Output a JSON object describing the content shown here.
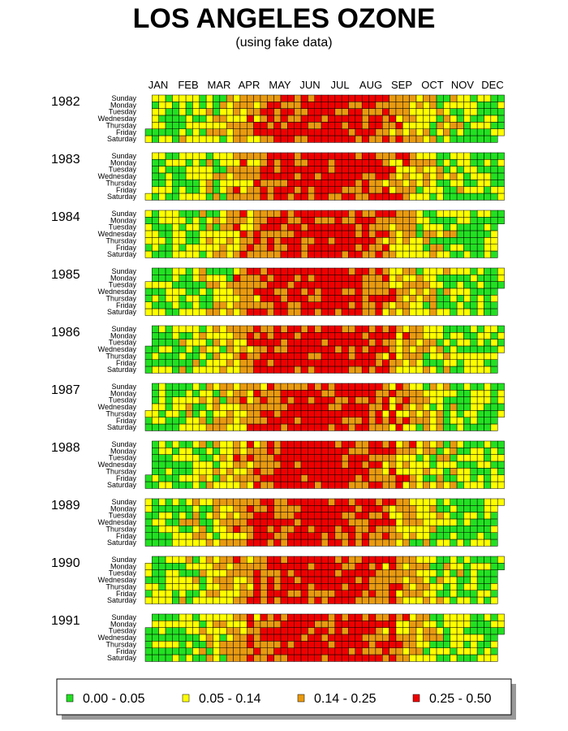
{
  "chart_data": {
    "type": "heatmap",
    "title": "LOS ANGELES OZONE",
    "subtitle": "(using fake data)",
    "months": [
      "JAN",
      "FEB",
      "MAR",
      "APR",
      "MAY",
      "JUN",
      "JUL",
      "AUG",
      "SEP",
      "OCT",
      "NOV",
      "DEC"
    ],
    "days_of_week": [
      "Sunday",
      "Monday",
      "Tuesday",
      "Wednesday",
      "Thursday",
      "Friday",
      "Saturday"
    ],
    "years": [
      1982,
      1983,
      1984,
      1985,
      1986,
      1987,
      1988,
      1989,
      1990,
      1991
    ],
    "seed": 20240601,
    "legend": {
      "placement": "bottom",
      "bins": [
        {
          "label": "0.00 - 0.05",
          "range": [
            0.0,
            0.05
          ],
          "color": "#22e022"
        },
        {
          "label": "0.05 - 0.14",
          "range": [
            0.05,
            0.14
          ],
          "color": "#ffff00"
        },
        {
          "label": "0.14 - 0.25",
          "range": [
            0.14,
            0.25
          ],
          "color": "#e89a10"
        },
        {
          "label": "0.25 - 0.50",
          "range": [
            0.25,
            0.5
          ],
          "color": "#ee0000"
        }
      ]
    },
    "cell_border_color": "#000000"
  }
}
